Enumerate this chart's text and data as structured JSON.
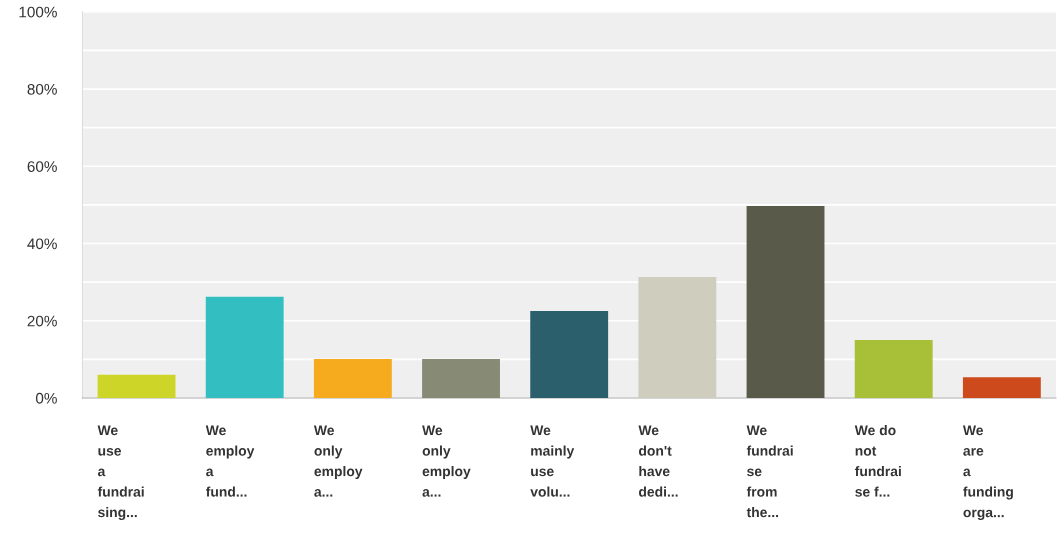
{
  "chart_data": {
    "type": "bar",
    "categories": [
      "We\nuse\na\nfundrai\nsing...",
      "We\nemploy\na\nfund...",
      "We\nonly\nemploy\na...",
      "We\nonly\nemploy\na...",
      "We\nmainly\nuse\nvolu...",
      "We\ndon't\nhave\ndedi...",
      "We\nfundrai\nse\nfrom\nthe...",
      "We do\nnot\nfundrai\nse f...",
      "We\nare\na\nfunding\norga..."
    ],
    "values": [
      6,
      26.2,
      10.1,
      10.1,
      22.5,
      31.3,
      49.7,
      15,
      5.4
    ],
    "colors": [
      "#cdd628",
      "#33bfc1",
      "#f6ab1e",
      "#878a75",
      "#2c5f6c",
      "#cfcdbe",
      "#5a5a4b",
      "#a8bf38",
      "#cc4a1b"
    ],
    "ylim": [
      0,
      100
    ],
    "yticks": [
      {
        "value": 0,
        "label": "0%"
      },
      {
        "value": 10,
        "label": null
      },
      {
        "value": 20,
        "label": "20%"
      },
      {
        "value": 30,
        "label": null
      },
      {
        "value": 40,
        "label": "40%"
      },
      {
        "value": 50,
        "label": null
      },
      {
        "value": 60,
        "label": "60%"
      },
      {
        "value": 70,
        "label": null
      },
      {
        "value": 80,
        "label": "80%"
      },
      {
        "value": 90,
        "label": null
      },
      {
        "value": 100,
        "label": "100%"
      }
    ],
    "grid": "y"
  }
}
